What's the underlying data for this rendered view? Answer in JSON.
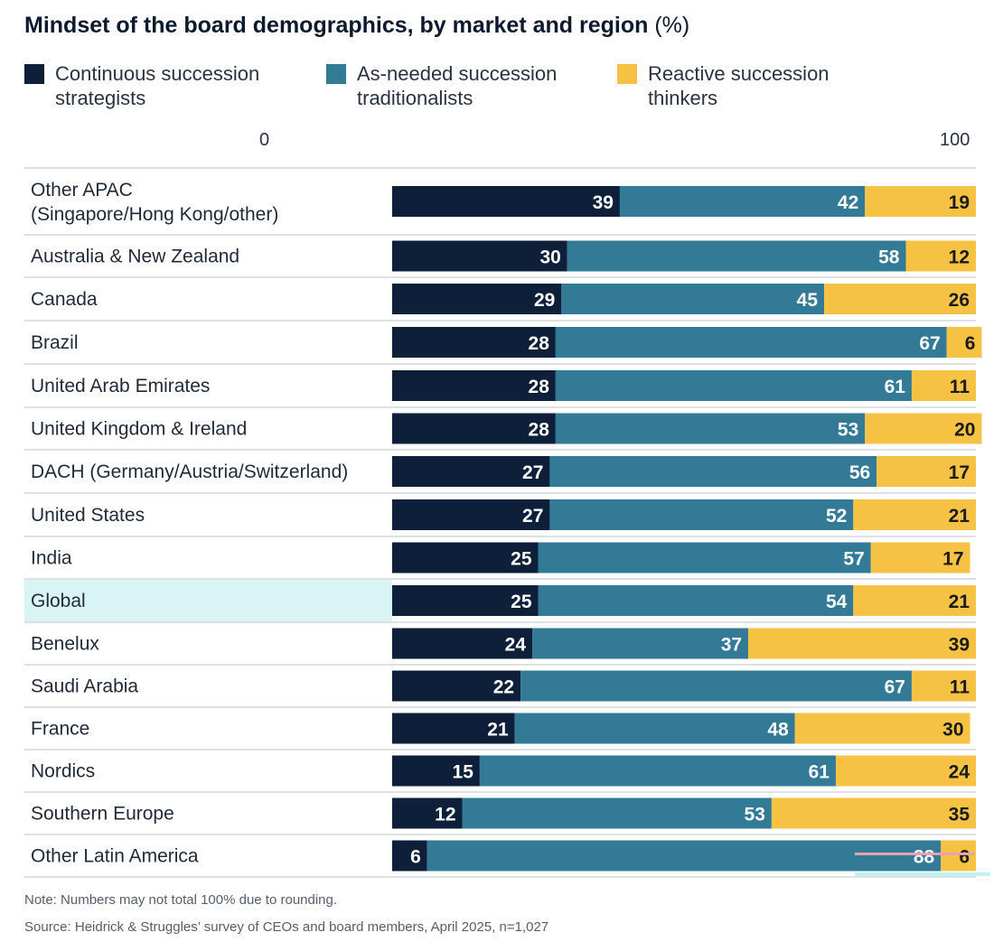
{
  "chart_data": {
    "type": "bar",
    "orientation": "horizontal",
    "stacked": true,
    "title": "Mindset of the board demographics, by market and region",
    "title_unit": "(%)",
    "xlim": [
      0,
      100
    ],
    "x_ticks": [
      "0",
      "100"
    ],
    "legend_position": "top",
    "highlight_category": "Global",
    "categories": [
      [
        "Other APAC",
        "(Singapore/Hong Kong/other)"
      ],
      [
        "Australia & New Zealand"
      ],
      [
        "Canada"
      ],
      [
        "Brazil"
      ],
      [
        "United Arab Emirates"
      ],
      [
        "United Kingdom & Ireland"
      ],
      [
        "DACH (Germany/Austria/Switzerland)"
      ],
      [
        "United States"
      ],
      [
        "India"
      ],
      [
        "Global"
      ],
      [
        "Benelux"
      ],
      [
        "Saudi Arabia"
      ],
      [
        "France"
      ],
      [
        "Nordics"
      ],
      [
        "Southern Europe"
      ],
      [
        "Other Latin America"
      ]
    ],
    "series": [
      {
        "name": [
          "Continuous succession",
          "strategists"
        ],
        "color": "#0e1f3a",
        "values": [
          39,
          30,
          29,
          28,
          28,
          28,
          27,
          27,
          25,
          25,
          24,
          22,
          21,
          15,
          12,
          6
        ]
      },
      {
        "name": [
          "As-needed succession",
          "traditionalists"
        ],
        "color": "#327a96",
        "values": [
          42,
          58,
          45,
          67,
          61,
          53,
          56,
          52,
          57,
          54,
          37,
          67,
          48,
          61,
          53,
          88
        ]
      },
      {
        "name": [
          "Reactive succession",
          "thinkers"
        ],
        "color": "#f6c244",
        "values": [
          19,
          12,
          26,
          6,
          11,
          20,
          17,
          21,
          17,
          21,
          39,
          11,
          30,
          24,
          35,
          6
        ]
      }
    ]
  },
  "notes": {
    "note": "Note: Numbers may not total 100% due to rounding.",
    "source": "Source: Heidrick & Struggles’ survey of CEOs and board members, April 2025, n=1,027"
  },
  "colors": {
    "highlight_row": "#d9f4f4",
    "divider": "#d4d7db",
    "label_light": "#ffffff",
    "label_dark": "#1a1a1a"
  }
}
